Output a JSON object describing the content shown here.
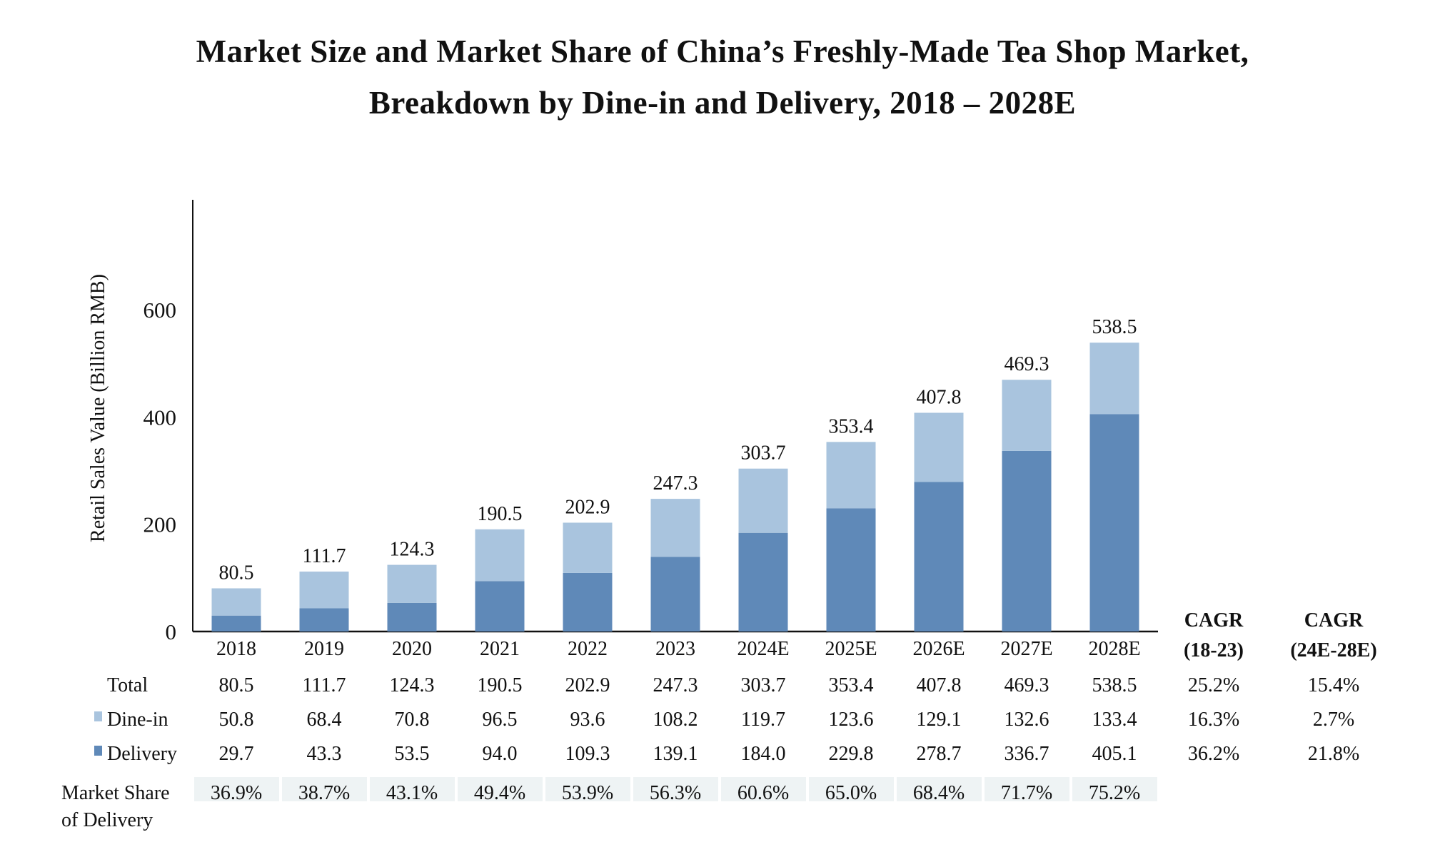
{
  "title": {
    "line1": "Market Size and Market Share of China’s Freshly-Made Tea Shop Market,",
    "line2": "Breakdown by Dine-in and Delivery, 2018 – 2028E"
  },
  "chart_data": {
    "type": "bar",
    "stacked": true,
    "title": "Market Size and Market Share of China’s Freshly-Made Tea Shop Market, Breakdown by Dine-in and Delivery, 2018 – 2028E",
    "ylabel": "Retail Sales Value (Billion RMB)",
    "xlabel": "",
    "ylim": [
      0,
      800
    ],
    "yticks": [
      "0",
      "200",
      "400",
      "600"
    ],
    "ytick_values": [
      0,
      200,
      400,
      600
    ],
    "grid": false,
    "categories": [
      "2018",
      "2019",
      "2020",
      "2021",
      "2022",
      "2023",
      "2024E",
      "2025E",
      "2026E",
      "2027E",
      "2028E"
    ],
    "series": [
      {
        "name": "Delivery",
        "color": "#5f89b8",
        "values": [
          29.7,
          43.3,
          53.5,
          94.0,
          109.3,
          139.1,
          184.0,
          229.8,
          278.7,
          336.7,
          405.1
        ]
      },
      {
        "name": "Dine-in",
        "color": "#a9c4de",
        "values": [
          50.8,
          68.4,
          70.8,
          96.5,
          93.6,
          108.2,
          119.7,
          123.6,
          129.1,
          132.6,
          133.4
        ]
      }
    ],
    "totals": [
      80.5,
      111.7,
      124.3,
      190.5,
      202.9,
      247.3,
      303.7,
      353.4,
      407.8,
      469.3,
      538.5
    ],
    "total_labels": [
      "80.5",
      "111.7",
      "124.3",
      "190.5",
      "202.9",
      "247.3",
      "303.7",
      "353.4",
      "407.8",
      "469.3",
      "538.5"
    ],
    "table": {
      "rows": [
        {
          "label": "Total",
          "swatch": null,
          "cells": [
            "80.5",
            "111.7",
            "124.3",
            "190.5",
            "202.9",
            "247.3",
            "303.7",
            "353.4",
            "407.8",
            "469.3",
            "538.5"
          ],
          "cagr": [
            "25.2%",
            "15.4%"
          ]
        },
        {
          "label": "Dine-in",
          "swatch": "#a9c4de",
          "cells": [
            "50.8",
            "68.4",
            "70.8",
            "96.5",
            "93.6",
            "108.2",
            "119.7",
            "123.6",
            "129.1",
            "132.6",
            "133.4"
          ],
          "cagr": [
            "16.3%",
            "2.7%"
          ]
        },
        {
          "label": "Delivery",
          "swatch": "#5f89b8",
          "cells": [
            "29.7",
            "43.3",
            "53.5",
            "94.0",
            "109.3",
            "139.1",
            "184.0",
            "229.8",
            "278.7",
            "336.7",
            "405.1"
          ],
          "cagr": [
            "36.2%",
            "21.8%"
          ]
        }
      ],
      "share": {
        "label_line1": "Market Share",
        "label_line2": "of Delivery",
        "cells": [
          "36.9%",
          "38.7%",
          "43.1%",
          "49.4%",
          "53.9%",
          "56.3%",
          "60.6%",
          "65.0%",
          "68.4%",
          "71.7%",
          "75.2%"
        ],
        "bg": "#eef3f4"
      },
      "cagr_headers": [
        {
          "line1": "CAGR",
          "line2": "(18-23)"
        },
        {
          "line1": "CAGR",
          "line2": "(24E-28E)"
        }
      ]
    }
  }
}
